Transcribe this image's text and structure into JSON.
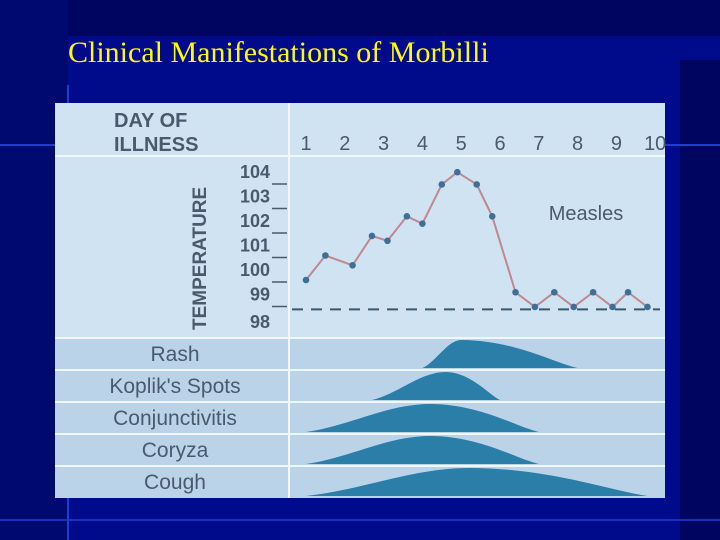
{
  "slide": {
    "title": "Clinical Manifestations of  Morbilli",
    "background_color": "#000b8c",
    "title_color": "#ffff00"
  },
  "chart_data": {
    "type": "line",
    "x_header": [
      "DAY OF",
      "ILLNESS"
    ],
    "x_ticks": [
      "1",
      "2",
      "3",
      "4",
      "5",
      "6",
      "7",
      "8",
      "9",
      "10"
    ],
    "ylabel": "TEMPERATURE",
    "y_ticks": [
      "104",
      "103",
      "102",
      "101",
      "100",
      "99",
      "98"
    ],
    "ylim": [
      98,
      104.5
    ],
    "baseline": 98.8,
    "series": [
      {
        "name": "Measles",
        "x": [
          1,
          1.5,
          2.2,
          2.7,
          3.1,
          3.6,
          4.0,
          4.5,
          4.9,
          5.4,
          5.8,
          6.4,
          6.9,
          7.4,
          7.9,
          8.4,
          8.9,
          9.3,
          9.8
        ],
        "y": [
          100.0,
          101.0,
          100.6,
          101.8,
          101.6,
          102.6,
          102.3,
          103.9,
          104.4,
          103.9,
          102.6,
          99.5,
          98.9,
          99.5,
          98.9,
          99.5,
          98.9,
          99.5,
          98.9
        ],
        "color": "#c08890",
        "marker_color": "#3f6f96"
      }
    ],
    "symptoms": [
      {
        "name": "Rash",
        "start": 4.0,
        "peak": 5.0,
        "end": 8.0
      },
      {
        "name": "Koplik's Spots",
        "start": 2.7,
        "peak": 4.6,
        "end": 6.0
      },
      {
        "name": "Conjunctivitis",
        "start": 1.0,
        "peak": 4.2,
        "end": 7.0
      },
      {
        "name": "Coryza",
        "start": 1.0,
        "peak": 4.2,
        "end": 7.0
      },
      {
        "name": "Cough",
        "start": 1.0,
        "peak": 5.2,
        "end": 9.8
      }
    ],
    "colors": {
      "panel": "#cfe3f2",
      "band": "#bad3e8",
      "hump": "#2a7ea7",
      "divider": "#f0f6fb",
      "text": "#4a5a6e"
    }
  }
}
